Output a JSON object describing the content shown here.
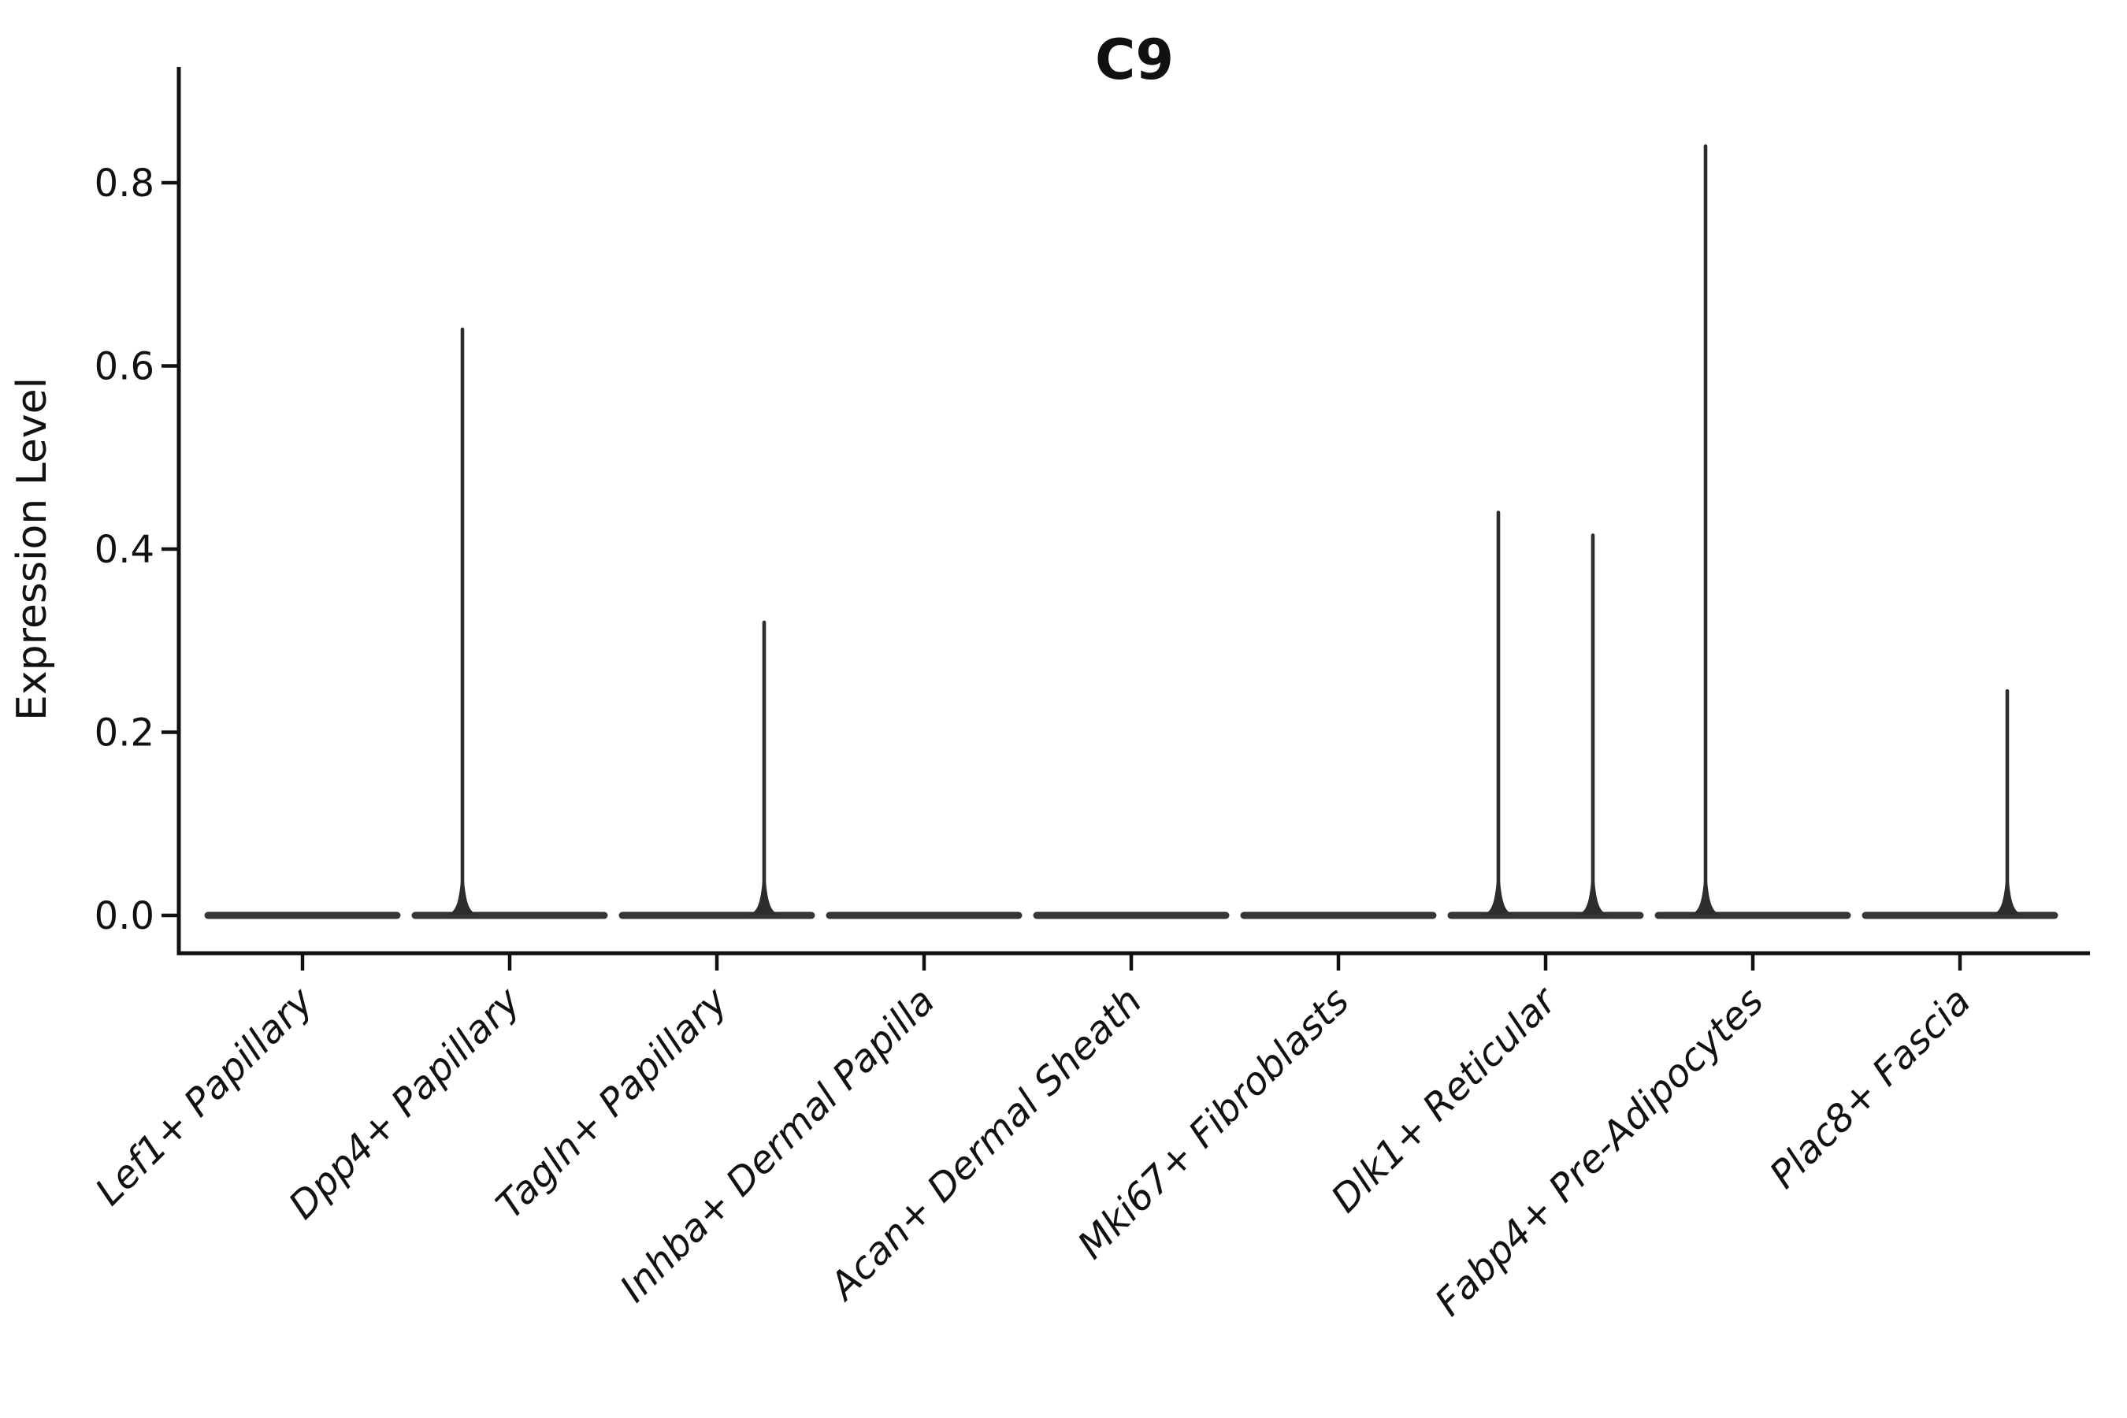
{
  "chart_data": {
    "type": "violin",
    "title": "C9",
    "ylabel": "Expression Level",
    "xlabel": "",
    "ylim": [
      0,
      0.93
    ],
    "grid": false,
    "legend": "none",
    "yticks": [
      {
        "label": "0.0",
        "value": 0.0
      },
      {
        "label": "0.2",
        "value": 0.2
      },
      {
        "label": "0.4",
        "value": 0.4
      },
      {
        "label": "0.6",
        "value": 0.6
      },
      {
        "label": "0.8",
        "value": 0.8
      }
    ],
    "categories": [
      "Lef1+ Papillary",
      "Dpp4+ Papillary",
      "Tagln+ Papillary",
      "Inhba+ Dermal Papilla",
      "Acan+ Dermal Sheath",
      "Mki67+ Fibroblasts",
      "Dlk1+ Reticular",
      "Fabp4+ Pre-Adipocytes",
      "Plac8+ Fascia"
    ],
    "violins": [
      {
        "category": "Lef1+ Papillary",
        "baseline_value": 0.0,
        "spikes": []
      },
      {
        "category": "Dpp4+ Papillary",
        "baseline_value": 0.0,
        "spikes": [
          {
            "position": "left",
            "value": 0.64
          }
        ]
      },
      {
        "category": "Tagln+ Papillary",
        "baseline_value": 0.0,
        "spikes": [
          {
            "position": "right",
            "value": 0.32
          }
        ]
      },
      {
        "category": "Inhba+ Dermal Papilla",
        "baseline_value": 0.0,
        "spikes": []
      },
      {
        "category": "Acan+ Dermal Sheath",
        "baseline_value": 0.0,
        "spikes": []
      },
      {
        "category": "Mki67+ Fibroblasts",
        "baseline_value": 0.0,
        "spikes": []
      },
      {
        "category": "Dlk1+ Reticular",
        "baseline_value": 0.0,
        "spikes": [
          {
            "position": "left",
            "value": 0.44
          },
          {
            "position": "right",
            "value": 0.415
          }
        ]
      },
      {
        "category": "Fabp4+ Pre-Adipocytes",
        "baseline_value": 0.0,
        "spikes": [
          {
            "position": "left",
            "value": 0.84
          }
        ]
      },
      {
        "category": "Plac8+ Fascia",
        "baseline_value": 0.0,
        "spikes": [
          {
            "position": "right",
            "value": 0.245
          }
        ]
      }
    ],
    "colors": {
      "violin_stroke": "#2d2d2d",
      "baseline_bar": "#363636",
      "axis": "#111111",
      "background": "#ffffff"
    }
  }
}
